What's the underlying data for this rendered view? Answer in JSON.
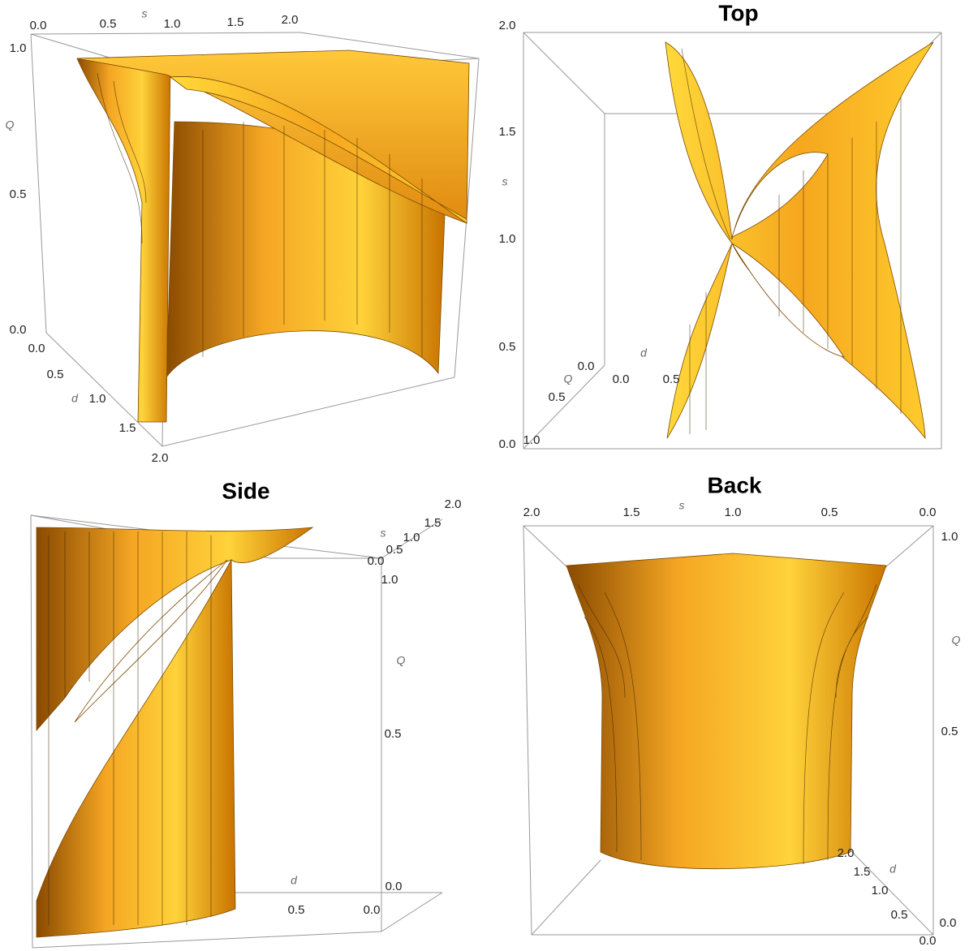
{
  "panels": [
    {
      "axes": {
        "s": {
          "label": "s",
          "ticks": [
            "0.0",
            "0.5",
            "1.0",
            "1.5",
            "2.0"
          ]
        },
        "Q": {
          "label": "Q",
          "ticks": [
            "1.0",
            "0.5",
            "0.0"
          ]
        },
        "d": {
          "label": "d",
          "ticks": [
            "0.0",
            "0.5",
            "1.0",
            "1.5",
            "2.0"
          ]
        }
      }
    },
    {
      "title": "Top",
      "axes": {
        "s": {
          "label": "s",
          "ticks": [
            "2.0",
            "1.5",
            "1.0",
            "0.5",
            "0.0"
          ]
        },
        "Q": {
          "label": "Q",
          "ticks": [
            "0.0",
            "0.5",
            "1.0"
          ]
        },
        "d": {
          "label": "d",
          "ticks": [
            "0.0",
            "0.5"
          ]
        }
      }
    },
    {
      "title": "Side",
      "axes": {
        "s": {
          "label": "s",
          "ticks": [
            "2.0",
            "1.5",
            "1.0",
            "0.5",
            "0.0"
          ]
        },
        "Q": {
          "label": "Q",
          "ticks": [
            "1.0",
            "0.5",
            "0.0"
          ]
        },
        "d": {
          "label": "d",
          "ticks": [
            "0.0",
            "0.5"
          ]
        }
      }
    },
    {
      "title": "Back",
      "axes": {
        "s": {
          "label": "s",
          "ticks": [
            "2.0",
            "1.5",
            "1.0",
            "0.5",
            "0.0"
          ]
        },
        "Q": {
          "label": "Q",
          "ticks": [
            "1.0",
            "0.5",
            "0.0"
          ]
        },
        "d": {
          "label": "d",
          "ticks": [
            "2.0",
            "1.5",
            "1.0",
            "0.5",
            "0.0"
          ]
        }
      }
    }
  ]
}
